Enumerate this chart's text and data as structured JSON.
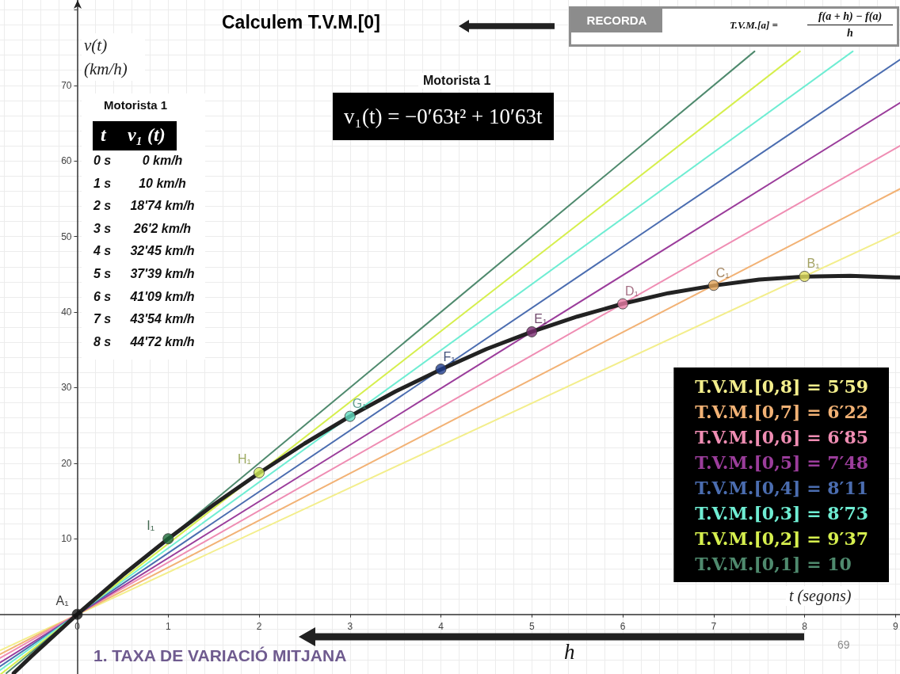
{
  "chart_data": {
    "type": "line",
    "title": "Calculem T.V.M.[0]",
    "xlabel": "t (segons)",
    "ylabel": "v(t) (km/h)",
    "xlim": [
      -0.85,
      9.05
    ],
    "ylim": [
      -7.9,
      81.3
    ],
    "xticks": [
      0,
      1,
      2,
      3,
      4,
      5,
      6,
      7,
      8,
      9
    ],
    "yticks": [
      10,
      20,
      30,
      40,
      50,
      60,
      70,
      {
        "value": 80,
        "label": null
      }
    ],
    "grid": true,
    "legend": "bottom right",
    "marker": "none",
    "series": [
      {
        "name": "T.V.M.[0,8] = 5′59",
        "color": "#f3ee8c",
        "x": [
          -0.85,
          9.05
        ],
        "values": [
          -4.8,
          50.6
        ]
      },
      {
        "name": "T.V.M.[0,7] = 6′22",
        "color": "#f2b275",
        "x": [
          -0.85,
          9.05
        ],
        "values": [
          -5.3,
          56.3
        ]
      },
      {
        "name": "T.V.M.[0,6] = 6′85",
        "color": "#ef8db3",
        "x": [
          -0.85,
          9.05
        ],
        "values": [
          -5.8,
          62.0
        ]
      },
      {
        "name": "T.V.M.[0,5] = 7′48",
        "color": "#9b3d9b",
        "x": [
          -0.85,
          9.05
        ],
        "values": [
          -6.4,
          67.7
        ]
      },
      {
        "name": "T.V.M.[0,4] = 8′11",
        "color": "#4b6db0",
        "x": [
          -0.85,
          9.05
        ],
        "values": [
          -6.9,
          73.4
        ]
      },
      {
        "name": "T.V.M.[0,3] = 8′73",
        "color": "#6fedd3",
        "x": [
          -0.85,
          8.53
        ],
        "values": [
          -7.4,
          74.5
        ]
      },
      {
        "name": "T.V.M.[0,2] = 9′37",
        "color": "#d6ef4e",
        "x": [
          -0.84,
          7.95
        ],
        "values": [
          -7.9,
          74.5
        ]
      },
      {
        "name": "T.V.M.[0,1] = 10",
        "color": "#4f8a6e",
        "x": [
          -0.78,
          7.45
        ],
        "values": [
          -7.8,
          74.5
        ]
      },
      {
        "color": "#222222",
        "x": [
          -0.7,
          -0.5,
          0,
          0.5,
          1,
          1.5,
          2,
          2.5,
          3,
          3.5,
          4,
          4.5,
          5,
          5.5,
          6,
          6.5,
          7,
          7.5,
          8,
          8.5,
          9,
          9.05
        ],
        "values": [
          -7.8,
          -5.5,
          0,
          5.2,
          10,
          14.5,
          18.7,
          22.6,
          26.2,
          29.5,
          32.4,
          35.1,
          37.4,
          39.4,
          41.1,
          42.5,
          43.5,
          44.3,
          44.7,
          44.8,
          44.6,
          44.6
        ]
      },
      {
        "type": "scatter",
        "marker": "circle",
        "x": [
          0,
          1,
          2,
          3,
          4,
          5,
          6,
          7,
          8
        ],
        "values": [
          0,
          10,
          18.74,
          26.2,
          32.45,
          37.39,
          41.09,
          43.54,
          44.72
        ],
        "colors": [
          "#111111",
          "#1e6b3a",
          "#d3ee5a",
          "#5fdcc0",
          "#1f3d8f",
          "#7b2d72",
          "#e87ca4",
          "#e3a55a",
          "#e2e060"
        ],
        "value_labels": [
          "A₁",
          "I₁",
          "H₁",
          "G₁",
          "F₁",
          "E₁",
          "D₁",
          "C₁",
          "B₁"
        ]
      }
    ],
    "annotations": [
      "Motorista 1",
      "t",
      "v₁ (t)",
      "0 s",
      "0 km/h",
      "1 s",
      "10 km/h",
      "2 s",
      "18'74 km/h",
      "3 s",
      "26'2 km/h",
      "4 s",
      "32'45 km/h",
      "5 s",
      "37'39 km/h",
      "6 s",
      "41'09 km/h",
      "7 s",
      "43'54 km/h",
      "8 s",
      "44'72 km/h",
      "Motorista 1",
      "v₁(t) = −0′63t² + 10′63t",
      "RECORDA",
      "T.V.M.[a] =",
      "f(a + h) − f(a)",
      "h",
      "h",
      "1. TAXA DE VARIACIÓ MITJANA",
      "69"
    ]
  }
}
